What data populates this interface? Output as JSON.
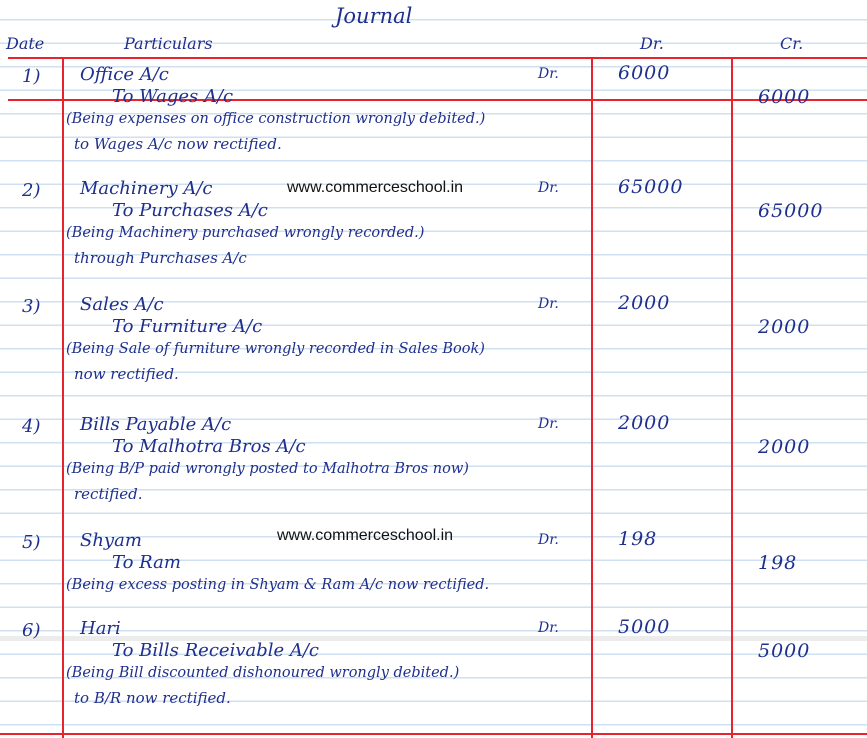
{
  "title": "Journal",
  "headers": {
    "date": "Date",
    "particulars": "Particulars",
    "dr": "Dr.",
    "cr": "Cr."
  },
  "watermark": "www.commerceschool.in",
  "colors": {
    "ink": "#1f2f8c",
    "rule_red": "#e8232d",
    "rule_blue": "#cfe0f0"
  },
  "entries": [
    {
      "no": "1)",
      "debit": "Office A/c",
      "dr_mark": "Dr.",
      "credit": "To Wages A/c",
      "narration": [
        "(Being expenses on office construction wrongly debited.)",
        "to Wages A/c now rectified."
      ],
      "dr_amount": "6000",
      "cr_amount": "6000"
    },
    {
      "no": "2)",
      "debit": "Machinery A/c",
      "dr_mark": "Dr.",
      "credit": "To Purchases A/c",
      "narration": [
        "(Being Machinery purchased wrongly recorded.)",
        "through Purchases A/c"
      ],
      "dr_amount": "65000",
      "cr_amount": "65000"
    },
    {
      "no": "3)",
      "debit": "Sales A/c",
      "dr_mark": "Dr.",
      "credit": "To Furniture A/c",
      "narration": [
        "(Being Sale of furniture wrongly recorded in Sales Book)",
        "now rectified."
      ],
      "dr_amount": "2000",
      "cr_amount": "2000"
    },
    {
      "no": "4)",
      "debit": "Bills Payable A/c",
      "dr_mark": "Dr.",
      "credit": "To Malhotra Bros A/c",
      "narration": [
        "(Being B/P paid wrongly posted to Malhotra Bros now)",
        "rectified."
      ],
      "dr_amount": "2000",
      "cr_amount": "2000"
    },
    {
      "no": "5)",
      "debit": "Shyam",
      "dr_mark": "Dr.",
      "credit": "To Ram",
      "narration": [
        "(Being excess posting in Shyam & Ram A/c now rectified."
      ],
      "dr_amount": "198",
      "cr_amount": "198"
    },
    {
      "no": "6)",
      "debit": "Hari",
      "dr_mark": "Dr.",
      "credit": "To Bills Receivable A/c",
      "narration": [
        "(Being Bill discounted dishonoured wrongly debited.)",
        "to B/R now rectified."
      ],
      "dr_amount": "5000",
      "cr_amount": "5000"
    }
  ]
}
